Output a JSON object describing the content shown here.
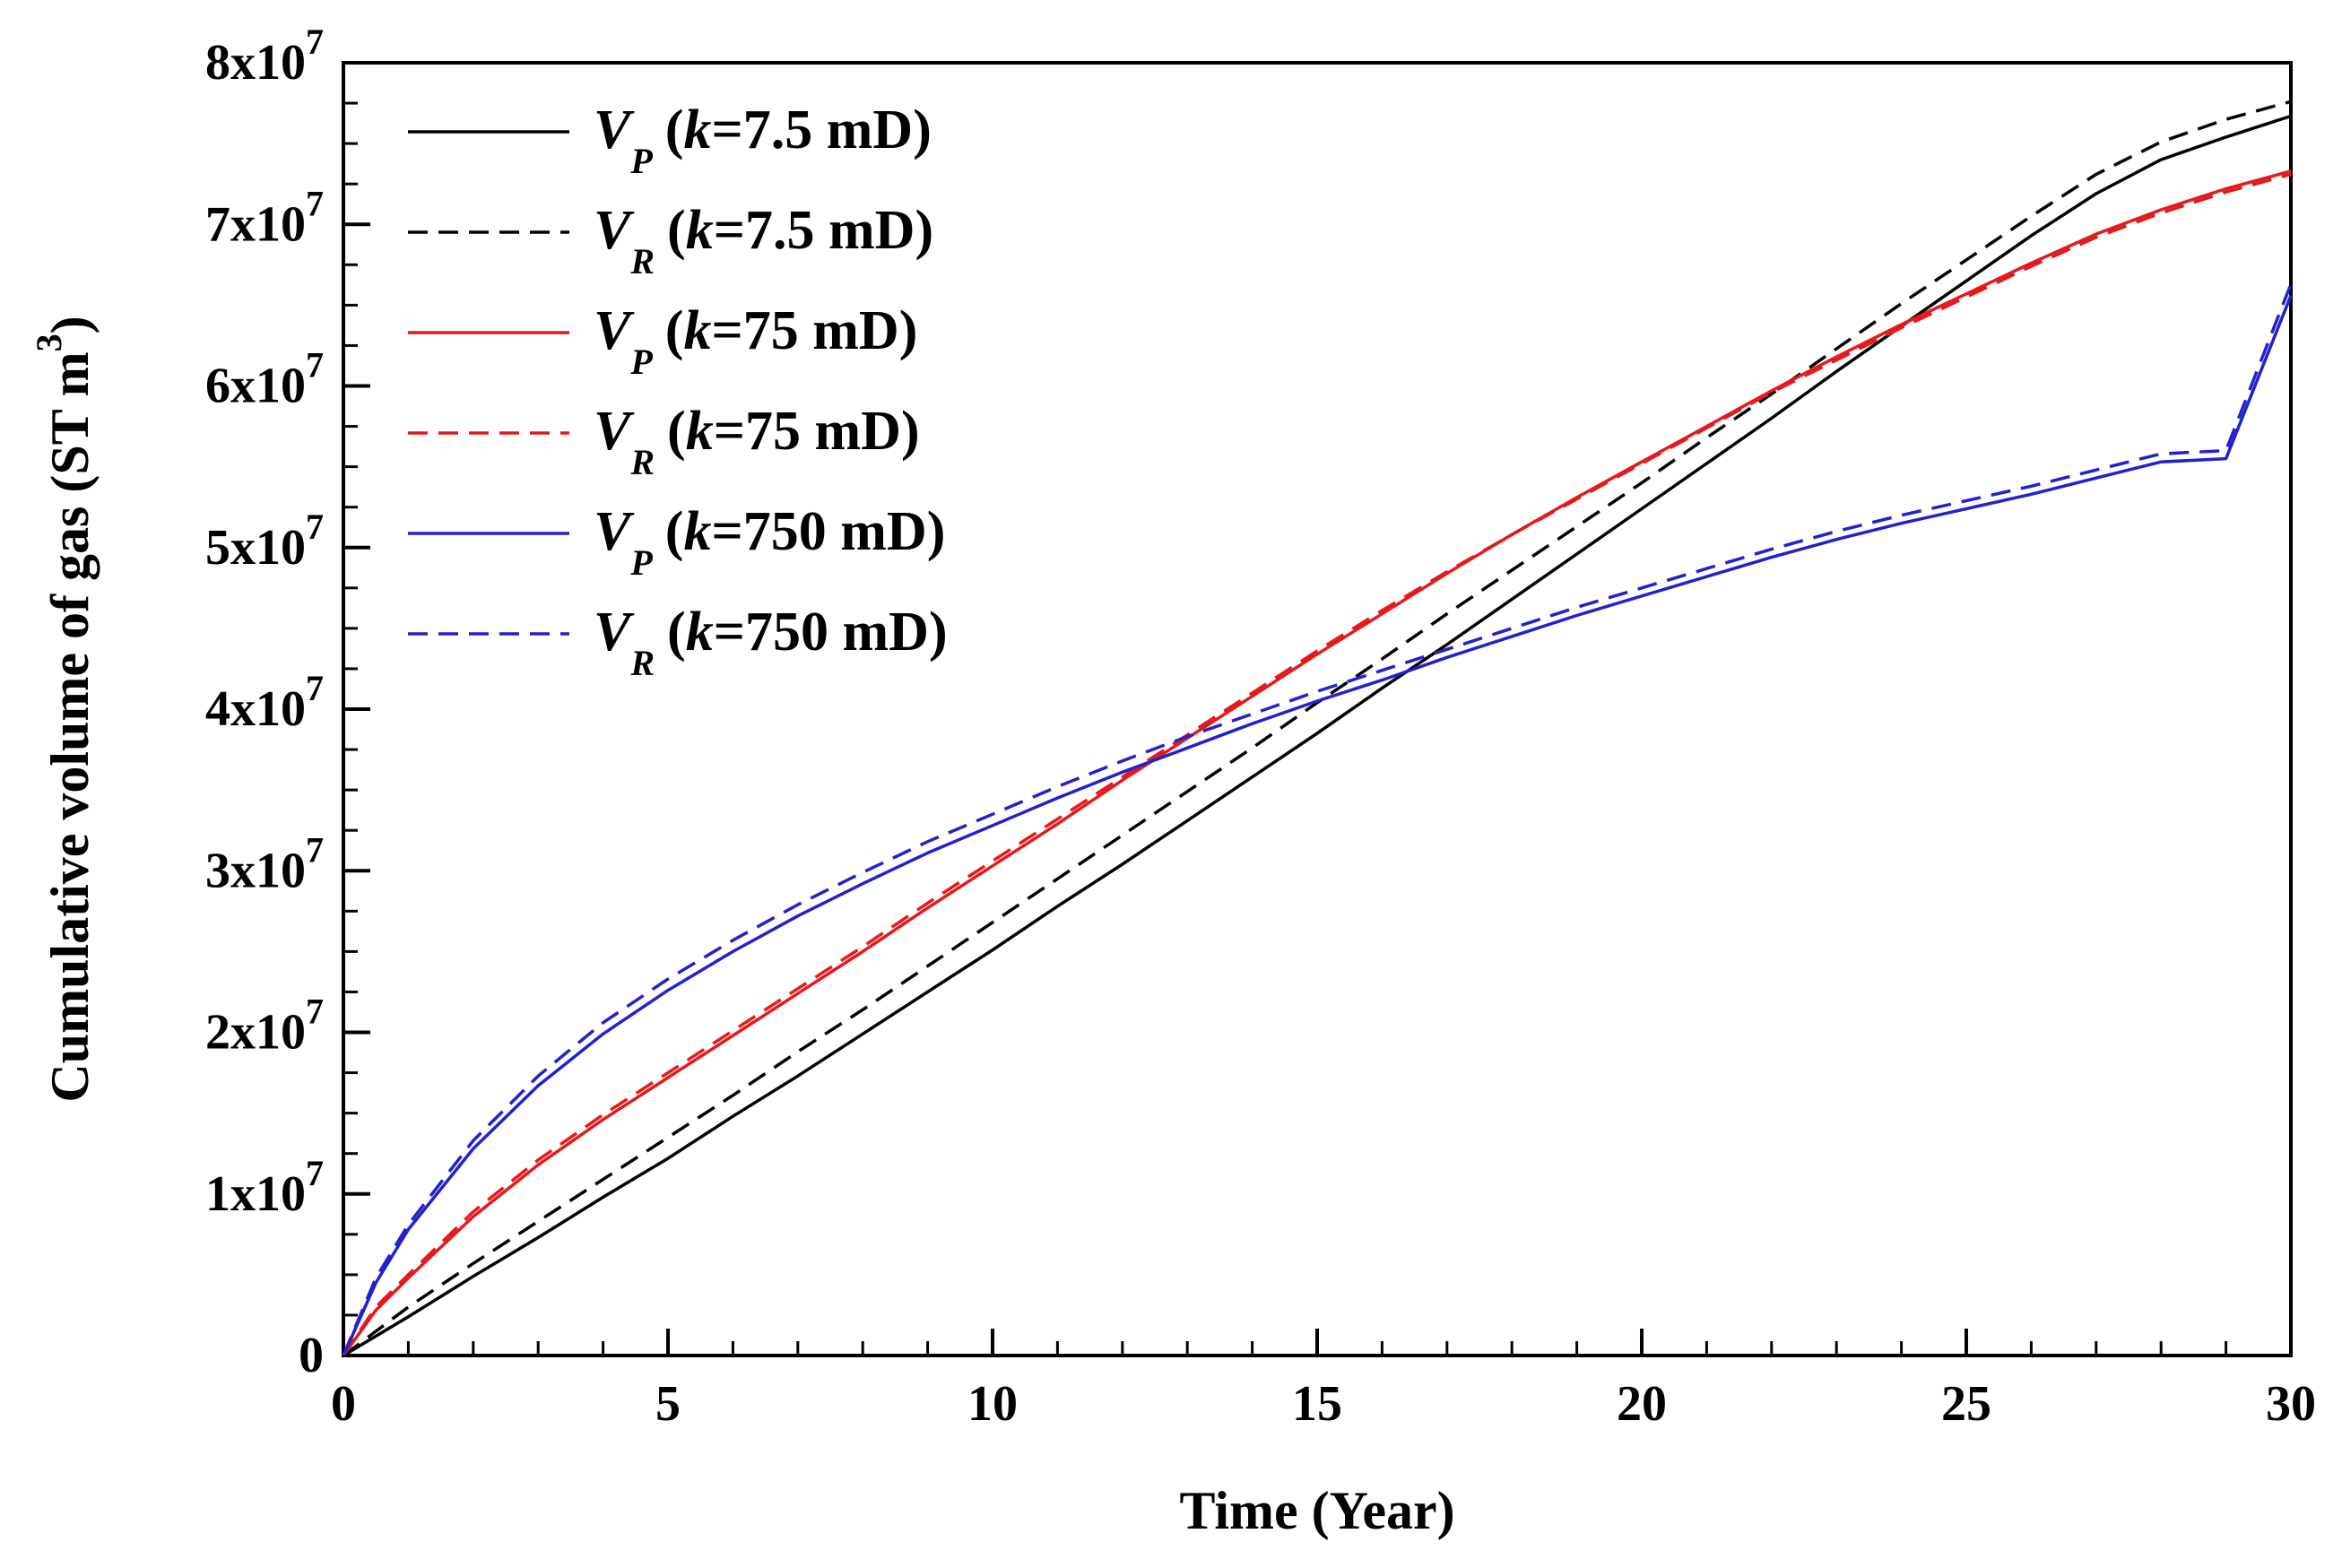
{
  "chart_data": {
    "type": "line",
    "xlabel": "Time (Year)",
    "ylabel": "Cumulative volume of gas (ST m³)",
    "ylabel_parts": {
      "main": "Cumulative volume of gas (ST m",
      "sup": "3",
      "close": ")"
    },
    "xlim": [
      0,
      30
    ],
    "ylim": [
      0,
      80000000
    ],
    "x_ticks": [
      {
        "value": 0,
        "label": "0"
      },
      {
        "value": 5,
        "label": "5"
      },
      {
        "value": 10,
        "label": "10"
      },
      {
        "value": 15,
        "label": "15"
      },
      {
        "value": 20,
        "label": "20"
      },
      {
        "value": 25,
        "label": "25"
      },
      {
        "value": 30,
        "label": "30"
      }
    ],
    "x_minor_step": 1,
    "y_ticks": [
      {
        "value": 0,
        "base": "0",
        "exp": ""
      },
      {
        "value": 10000000,
        "base": "1x10",
        "exp": "7"
      },
      {
        "value": 20000000,
        "base": "2x10",
        "exp": "7"
      },
      {
        "value": 30000000,
        "base": "3x10",
        "exp": "7"
      },
      {
        "value": 40000000,
        "base": "4x10",
        "exp": "7"
      },
      {
        "value": 50000000,
        "base": "5x10",
        "exp": "7"
      },
      {
        "value": 60000000,
        "base": "6x10",
        "exp": "7"
      },
      {
        "value": 70000000,
        "base": "7x10",
        "exp": "7"
      },
      {
        "value": 80000000,
        "base": "8x10",
        "exp": "7"
      }
    ],
    "y_minor_step": 2500000,
    "grid": false,
    "legend_position": "top-left",
    "x": [
      0,
      0.5,
      1,
      2,
      3,
      4,
      5,
      6,
      7,
      8,
      9,
      10,
      11,
      12,
      13,
      14,
      15,
      16,
      17,
      18,
      19,
      20,
      21,
      22,
      23,
      24,
      25,
      26,
      27,
      28,
      29,
      30
    ],
    "series": [
      {
        "symbol": "V",
        "sub": "P",
        "prefix": "(",
        "k": "k",
        "suffix": "=7.5 mD)",
        "color": "#000000",
        "dash": "solid",
        "values": [
          0,
          1200000,
          2400000,
          4900000,
          7300000,
          9800000,
          12200000,
          14800000,
          17300000,
          19900000,
          22500000,
          25100000,
          27800000,
          30400000,
          33100000,
          35800000,
          38500000,
          41300000,
          44000000,
          46800000,
          49600000,
          52400000,
          55200000,
          58000000,
          60900000,
          63700000,
          66500000,
          69300000,
          71900000,
          74000000,
          75400000,
          76700000
        ]
      },
      {
        "symbol": "V",
        "sub": "R",
        "prefix": "(",
        "k": "k",
        "suffix": "=7.5 mD)",
        "color": "#000000",
        "dash": "dashed",
        "values": [
          0,
          1500000,
          3000000,
          5700000,
          8300000,
          10900000,
          13500000,
          16100000,
          18800000,
          21400000,
          24100000,
          26800000,
          29500000,
          32200000,
          34900000,
          37600000,
          40400000,
          43100000,
          45900000,
          48600000,
          51300000,
          54000000,
          56800000,
          59500000,
          62300000,
          65100000,
          67800000,
          70500000,
          73100000,
          75100000,
          76500000,
          77600000
        ]
      },
      {
        "symbol": "V",
        "sub": "P",
        "prefix": "(",
        "k": "k",
        "suffix": "=75 mD)",
        "color": "#e41a1c",
        "dash": "solid",
        "values": [
          0,
          2800000,
          4800000,
          8600000,
          11800000,
          14600000,
          17200000,
          19800000,
          22400000,
          25000000,
          27700000,
          30300000,
          32900000,
          35600000,
          38200000,
          40800000,
          43400000,
          45900000,
          48400000,
          50800000,
          53100000,
          55300000,
          57500000,
          59700000,
          61800000,
          63800000,
          65700000,
          67600000,
          69400000,
          70900000,
          72200000,
          73300000
        ]
      },
      {
        "symbol": "V",
        "sub": "R",
        "prefix": "(",
        "k": "k",
        "suffix": "=75 mD)",
        "color": "#e41a1c",
        "dash": "dashed",
        "values": [
          0,
          3000000,
          5000000,
          8900000,
          12100000,
          14900000,
          17500000,
          20100000,
          22700000,
          25300000,
          28000000,
          30600000,
          33200000,
          35800000,
          38400000,
          41000000,
          43600000,
          46100000,
          48500000,
          50800000,
          53000000,
          55200000,
          57400000,
          59600000,
          61600000,
          63600000,
          65500000,
          67400000,
          69200000,
          70700000,
          72000000,
          73100000
        ]
      },
      {
        "symbol": "V",
        "sub": "P",
        "prefix": "(",
        "k": "k",
        "suffix": "=750 mD)",
        "color": "#2222cc",
        "dash": "solid",
        "values": [
          0,
          4500000,
          7800000,
          12800000,
          16700000,
          19900000,
          22600000,
          25000000,
          27200000,
          29200000,
          31100000,
          32800000,
          34500000,
          36100000,
          37600000,
          39100000,
          40500000,
          41800000,
          43200000,
          44500000,
          45800000,
          47000000,
          48200000,
          49400000,
          50500000,
          51500000,
          52400000,
          53300000,
          54300000,
          55300000,
          55500000,
          65600000
        ]
      },
      {
        "symbol": "V",
        "sub": "R",
        "prefix": "(",
        "k": "k",
        "suffix": "=750 mD)",
        "color": "#2222cc",
        "dash": "dashed",
        "values": [
          0,
          4800000,
          8100000,
          13300000,
          17300000,
          20600000,
          23300000,
          25700000,
          27900000,
          29900000,
          31800000,
          33500000,
          35200000,
          36800000,
          38300000,
          39700000,
          41100000,
          42400000,
          43700000,
          45000000,
          46300000,
          47500000,
          48700000,
          49900000,
          51000000,
          52000000,
          52900000,
          53800000,
          54800000,
          55800000,
          56000000,
          66300000
        ]
      }
    ]
  }
}
